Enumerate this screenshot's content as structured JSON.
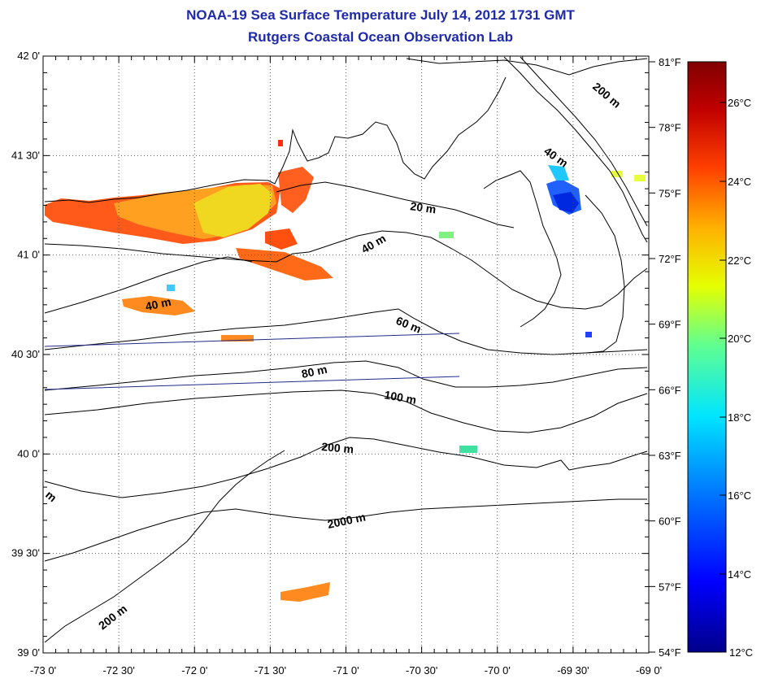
{
  "header": {
    "title": "NOAA-19 Sea Surface Temperature July 14, 2012 1731 GMT",
    "subtitle": "Rutgers Coastal Ocean Observation Lab"
  },
  "map": {
    "lon_labels": [
      "-73 0'",
      "-72 30'",
      "-72 0'",
      "-71 30'",
      "-71 0'",
      "-70 30'",
      "-70 0'",
      "-69 30'",
      "-69 0'"
    ],
    "lat_labels": [
      "42 0'",
      "41 30'",
      "41 0'",
      "40 30'",
      "40 0'",
      "39 30'",
      "39 0'"
    ],
    "contour_labels": [
      "200 m",
      "40 m",
      "20 m",
      "40 m",
      "40 m",
      "60 m",
      "80 m",
      "100 m",
      "200 m",
      "2000 m",
      "200 m",
      "m"
    ]
  },
  "colorbar": {
    "fahrenheit_labels": [
      "81°F",
      "78°F",
      "75°F",
      "72°F",
      "69°F",
      "66°F",
      "63°F",
      "60°F",
      "57°F",
      "54°F"
    ],
    "celsius_labels": [
      "26°C",
      "24°C",
      "22°C",
      "20°C",
      "18°C",
      "16°C",
      "14°C",
      "12°C"
    ],
    "colors": [
      "#00008b",
      "#0000ff",
      "#0080ff",
      "#00e5ff",
      "#60ff90",
      "#e5ff00",
      "#ffb000",
      "#ff4000",
      "#c00000",
      "#800000"
    ]
  },
  "colors": {
    "title": "#1f2aa8",
    "contour": "#000000",
    "track": "#1f2a8a"
  }
}
